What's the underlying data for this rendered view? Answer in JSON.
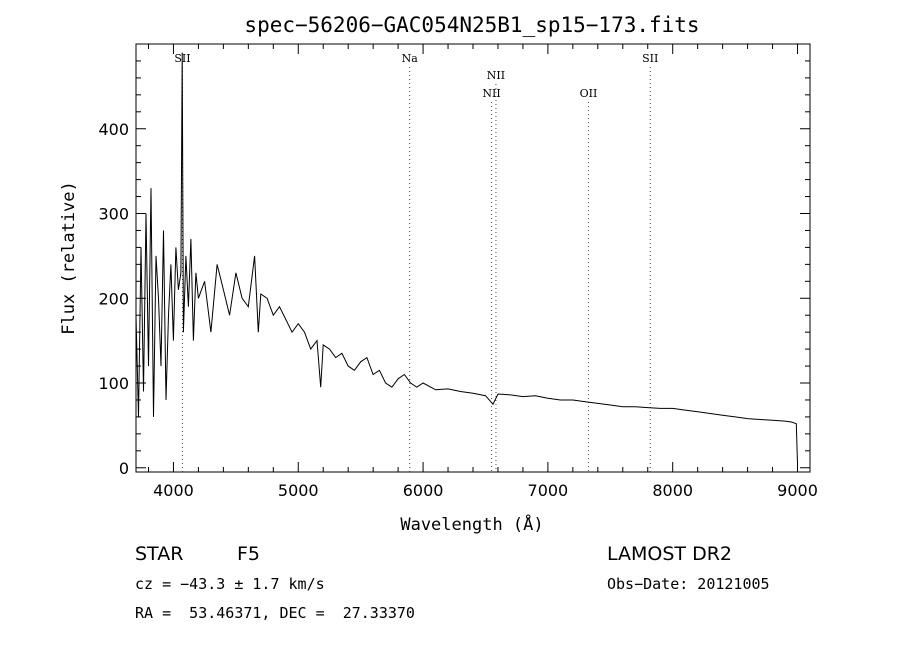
{
  "chart_data": {
    "type": "line",
    "title": "spec−56206−GAC054N25B1_sp15−173.fits",
    "xlabel": "Wavelength (Å)",
    "ylabel": "Flux (relative)",
    "xlim": [
      3700,
      9100
    ],
    "ylim": [
      -5,
      500
    ],
    "xticks": [
      4000,
      5000,
      6000,
      7000,
      8000,
      9000
    ],
    "yticks": [
      0,
      100,
      200,
      300,
      400
    ],
    "grid": false,
    "spectrum": {
      "x": [
        3700,
        3720,
        3740,
        3760,
        3780,
        3800,
        3820,
        3840,
        3860,
        3880,
        3900,
        3920,
        3940,
        3960,
        3980,
        4000,
        4020,
        4040,
        4060,
        4070,
        4080,
        4100,
        4120,
        4140,
        4160,
        4180,
        4200,
        4250,
        4300,
        4350,
        4400,
        4450,
        4500,
        4550,
        4600,
        4650,
        4680,
        4700,
        4750,
        4800,
        4850,
        4900,
        4950,
        5000,
        5050,
        5100,
        5150,
        5180,
        5200,
        5250,
        5300,
        5350,
        5400,
        5450,
        5500,
        5550,
        5600,
        5650,
        5700,
        5750,
        5800,
        5850,
        5900,
        5950,
        6000,
        6100,
        6200,
        6300,
        6400,
        6500,
        6560,
        6600,
        6700,
        6800,
        6900,
        7000,
        7100,
        7200,
        7300,
        7400,
        7500,
        7600,
        7700,
        7800,
        7900,
        8000,
        8100,
        8200,
        8300,
        8400,
        8500,
        8600,
        8700,
        8800,
        8900,
        8950,
        8990,
        9000
      ],
      "y": [
        180,
        60,
        260,
        90,
        300,
        120,
        330,
        60,
        250,
        200,
        120,
        280,
        80,
        180,
        240,
        150,
        260,
        210,
        230,
        490,
        160,
        250,
        190,
        270,
        150,
        230,
        200,
        220,
        160,
        240,
        210,
        180,
        230,
        200,
        190,
        250,
        160,
        205,
        200,
        180,
        190,
        175,
        160,
        170,
        160,
        140,
        150,
        95,
        145,
        140,
        130,
        135,
        120,
        115,
        125,
        130,
        110,
        115,
        100,
        95,
        105,
        110,
        100,
        95,
        100,
        92,
        93,
        90,
        88,
        85,
        75,
        87,
        86,
        84,
        85,
        82,
        80,
        80,
        78,
        76,
        74,
        72,
        72,
        71,
        70,
        70,
        68,
        66,
        64,
        62,
        60,
        58,
        57,
        56,
        55,
        54,
        52,
        5
      ]
    },
    "lines": [
      {
        "label": "SII",
        "x": 4072,
        "row": 0
      },
      {
        "label": "Na",
        "x": 5893,
        "row": 0
      },
      {
        "label": "NII",
        "x": 6584,
        "row": 1
      },
      {
        "label": "NII",
        "x": 6549,
        "row": 2
      },
      {
        "label": "OII",
        "x": 7325,
        "row": 2
      },
      {
        "label": "SII",
        "x": 7820,
        "row": 0
      }
    ]
  },
  "footer": {
    "object_class": "STAR",
    "subclass": "F5",
    "redshift": "cz = −43.3 ± 1.7 km/s",
    "coords": "RA =  53.46371, DEC =  27.33370",
    "survey": "LAMOST DR2",
    "obs_date": "Obs−Date: 20121005"
  }
}
